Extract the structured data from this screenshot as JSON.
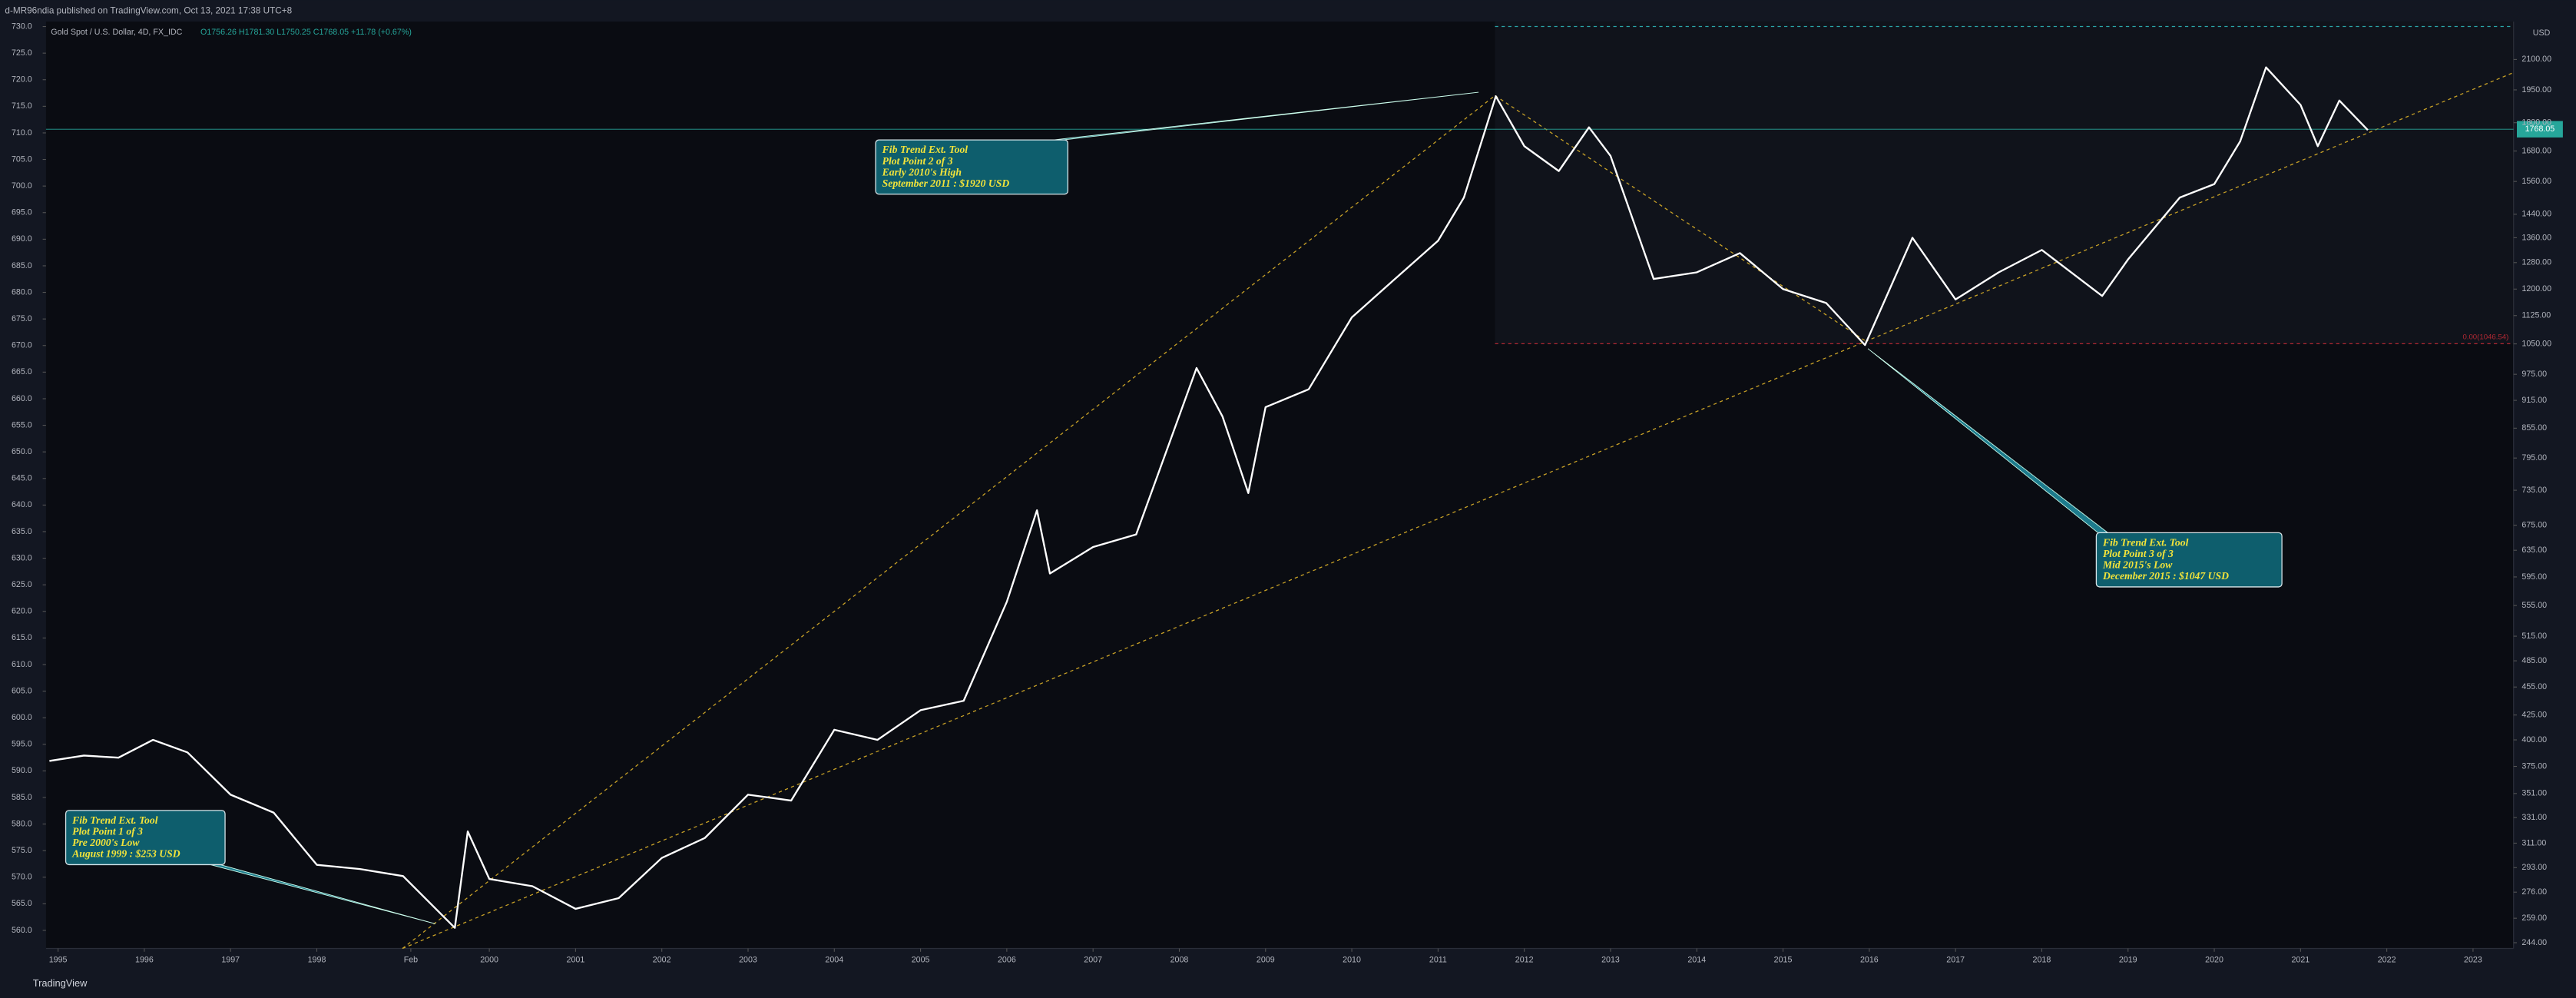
{
  "header": {
    "published": "d-MR96ndia published on TradingView.com, Oct 13, 2021 17:38 UTC+8",
    "symbol": "Gold Spot / U.S. Dollar, 4D, FX_IDC",
    "ohlc": "O1756.26 H1781.30 L1750.25 C1768.05 +11.78 (+0.67%)"
  },
  "footer": {
    "brand": "TradingView"
  },
  "chart_data": {
    "type": "line",
    "log_scale": true,
    "y_unit": "USD",
    "last_price": "1768.05",
    "fib_label": "0.00(1046.54)",
    "x": [
      1994.9,
      1995.3,
      1995.7,
      1996.1,
      1996.5,
      1997.0,
      1997.5,
      1998.0,
      1998.5,
      1999.0,
      1999.6,
      1999.75,
      2000.0,
      2000.5,
      2001.0,
      2001.5,
      2002.0,
      2002.5,
      2003.0,
      2003.5,
      2004.0,
      2004.5,
      2005.0,
      2005.5,
      2006.0,
      2006.35,
      2006.5,
      2007.0,
      2007.5,
      2008.2,
      2008.5,
      2008.8,
      2009.0,
      2009.5,
      2010.0,
      2010.5,
      2011.0,
      2011.3,
      2011.67,
      2012.0,
      2012.4,
      2012.75,
      2013.0,
      2013.5,
      2014.0,
      2014.5,
      2015.0,
      2015.5,
      2015.95,
      2016.5,
      2017.0,
      2017.5,
      2018.0,
      2018.7,
      2019.0,
      2019.6,
      2020.0,
      2020.3,
      2020.6,
      2021.0,
      2021.2,
      2021.45,
      2021.78
    ],
    "series": [
      {
        "name": "Gold Spot",
        "color": "#ffffff",
        "values": [
          380,
          385,
          383,
          400,
          388,
          350,
          335,
          295,
          292,
          287,
          253,
          320,
          285,
          280,
          265,
          272,
          300,
          315,
          350,
          345,
          410,
          400,
          430,
          440,
          560,
          700,
          600,
          640,
          660,
          990,
          880,
          730,
          900,
          940,
          1120,
          1230,
          1350,
          1500,
          1920,
          1700,
          1600,
          1780,
          1660,
          1230,
          1250,
          1310,
          1200,
          1160,
          1047,
          1360,
          1170,
          1250,
          1320,
          1180,
          1290,
          1500,
          1550,
          1720,
          2060,
          1880,
          1700,
          1900,
          1768
        ]
      }
    ],
    "xlim": [
      1994.86,
      2023.47
    ],
    "xticks": [
      1995,
      1996,
      1997,
      1998,
      {
        "value": 1999.09,
        "label": "Feb"
      },
      2000,
      2001,
      2002,
      2003,
      2004,
      2005,
      2006,
      2007,
      2008,
      2009,
      2010,
      2011,
      2012,
      2013,
      2014,
      2015,
      2016,
      2017,
      2018,
      2019,
      2020,
      2021,
      2022,
      2023
    ],
    "ylim": [
      240.6,
      2303
    ],
    "yticks": [
      {
        "value": 2100,
        "label": "2100.00"
      },
      {
        "value": 1950,
        "label": "1950.00"
      },
      {
        "value": 1800,
        "label": "1800.00"
      },
      {
        "value": 1680,
        "label": "1680.00"
      },
      {
        "value": 1560,
        "label": "1560.00"
      },
      {
        "value": 1440,
        "label": "1440.00"
      },
      {
        "value": 1360,
        "label": "1360.00"
      },
      {
        "value": 1280,
        "label": "1280.00"
      },
      {
        "value": 1200,
        "label": "1200.00"
      },
      {
        "value": 1125,
        "label": "1125.00"
      },
      {
        "value": 1050,
        "label": "1050.00"
      },
      {
        "value": 975,
        "label": "975.00"
      },
      {
        "value": 915,
        "label": "915.00"
      },
      {
        "value": 855,
        "label": "855.00"
      },
      {
        "value": 795,
        "label": "795.00"
      },
      {
        "value": 735,
        "label": "735.00"
      },
      {
        "value": 675,
        "label": "675.00"
      },
      {
        "value": 635,
        "label": "635.00"
      },
      {
        "value": 595,
        "label": "595.00"
      },
      {
        "value": 555,
        "label": "555.00"
      },
      {
        "value": 515,
        "label": "515.00"
      },
      {
        "value": 485,
        "label": "485.00"
      },
      {
        "value": 455,
        "label": "455.00"
      },
      {
        "value": 425,
        "label": "425.00"
      },
      {
        "value": 400,
        "label": "400.00"
      },
      {
        "value": 375,
        "label": "375.00"
      },
      {
        "value": 351,
        "label": "351.00"
      },
      {
        "value": 331,
        "label": "331.00"
      },
      {
        "value": 311,
        "label": "311.00"
      },
      {
        "value": 293,
        "label": "293.00"
      },
      {
        "value": 276,
        "label": "276.00"
      },
      {
        "value": 259,
        "label": "259.00"
      },
      {
        "value": 244,
        "label": "244.00"
      }
    ],
    "y2lim": [
      556.6,
      730.93
    ],
    "y2ticks": [
      {
        "value": 730,
        "label": "730.0"
      },
      {
        "value": 725,
        "label": "725.0"
      },
      {
        "value": 720,
        "label": "720.0"
      },
      {
        "value": 715,
        "label": "715.0"
      },
      {
        "value": 710,
        "label": "710.0"
      },
      {
        "value": 705,
        "label": "705.0"
      },
      {
        "value": 700,
        "label": "700.0"
      },
      {
        "value": 695,
        "label": "695.0"
      },
      {
        "value": 690,
        "label": "690.0"
      },
      {
        "value": 685,
        "label": "685.0"
      },
      {
        "value": 680,
        "label": "680.0"
      },
      {
        "value": 675,
        "label": "675.0"
      },
      {
        "value": 670,
        "label": "670.0"
      },
      {
        "value": 665,
        "label": "665.0"
      },
      {
        "value": 660,
        "label": "660.0"
      },
      {
        "value": 655,
        "label": "655.0"
      },
      {
        "value": 650,
        "label": "650.0"
      },
      {
        "value": 645,
        "label": "645.0"
      },
      {
        "value": 640,
        "label": "640.0"
      },
      {
        "value": 635,
        "label": "635.0"
      },
      {
        "value": 630,
        "label": "630.0"
      },
      {
        "value": 625,
        "label": "625.0"
      },
      {
        "value": 620,
        "label": "620.0"
      },
      {
        "value": 615,
        "label": "615.0"
      },
      {
        "value": 610,
        "label": "610.0"
      },
      {
        "value": 605,
        "label": "605.0"
      },
      {
        "value": 600,
        "label": "600.0"
      },
      {
        "value": 595,
        "label": "595.0"
      },
      {
        "value": 590,
        "label": "590.0"
      },
      {
        "value": 585,
        "label": "585.0"
      },
      {
        "value": 580,
        "label": "580.0"
      },
      {
        "value": 575,
        "label": "575.0"
      },
      {
        "value": 570,
        "label": "570.0"
      },
      {
        "value": 565,
        "label": "565.0"
      },
      {
        "value": 560,
        "label": "560.0"
      }
    ],
    "annotations": [
      {
        "lines": [
          "Fib Trend Ext. Tool",
          "Plot Point 1 of 3",
          "Pre 2000's Low",
          "August 1999 : $253 USD"
        ]
      },
      {
        "lines": [
          "Fib Trend Ext. Tool",
          "Plot Point 2 of 3",
          "Early 2010's High",
          "September 2011 : $1920 USD"
        ]
      },
      {
        "lines": [
          "Fib Trend Ext. Tool",
          "Plot Point 3 of 3",
          "Mid 2015's Low",
          "December 2015 : $1047 USD"
        ]
      }
    ]
  }
}
